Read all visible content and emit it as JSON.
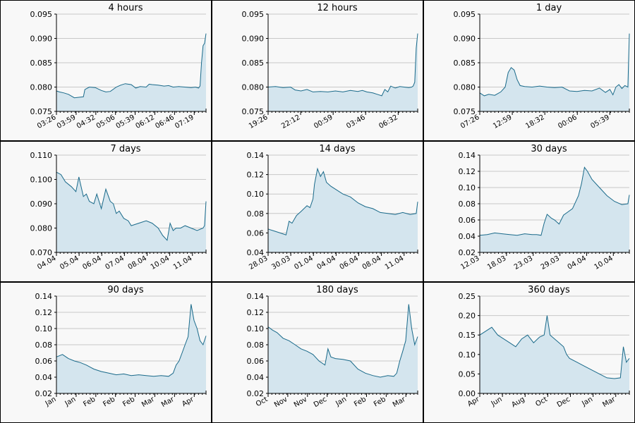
{
  "chart_data": [
    {
      "type": "area",
      "title": "4 hours",
      "ylim": [
        0.075,
        0.095
      ],
      "yticks": [
        "0.075",
        "0.080",
        "0.085",
        "0.090",
        "0.095"
      ],
      "xticks": [
        "03:26",
        "03:59",
        "04:32",
        "05:06",
        "05:39",
        "06:12",
        "06:46",
        "07:19"
      ],
      "x": [
        0,
        0.02,
        0.05,
        0.08,
        0.12,
        0.15,
        0.18,
        0.19,
        0.22,
        0.26,
        0.3,
        0.33,
        0.36,
        0.4,
        0.43,
        0.46,
        0.5,
        0.53,
        0.56,
        0.6,
        0.62,
        0.64,
        0.68,
        0.72,
        0.75,
        0.78,
        0.82,
        0.86,
        0.9,
        0.93,
        0.95,
        0.96,
        0.97,
        0.98,
        0.99,
        1.0
      ],
      "values": [
        0.0792,
        0.079,
        0.0788,
        0.0785,
        0.0778,
        0.0779,
        0.078,
        0.0795,
        0.08,
        0.0799,
        0.0793,
        0.079,
        0.0791,
        0.08,
        0.0804,
        0.0807,
        0.0805,
        0.0798,
        0.0801,
        0.08,
        0.0806,
        0.0805,
        0.0804,
        0.0802,
        0.0803,
        0.08,
        0.0801,
        0.08,
        0.0799,
        0.08,
        0.0798,
        0.0802,
        0.085,
        0.0885,
        0.089,
        0.091
      ]
    },
    {
      "type": "area",
      "title": "12 hours",
      "ylim": [
        0.075,
        0.095
      ],
      "yticks": [
        "0.075",
        "0.080",
        "0.085",
        "0.090",
        "0.095"
      ],
      "xticks": [
        "19:26",
        "22:12",
        "00:59",
        "03:46",
        "06:32"
      ],
      "x": [
        0,
        0.05,
        0.1,
        0.15,
        0.18,
        0.22,
        0.26,
        0.3,
        0.35,
        0.4,
        0.45,
        0.5,
        0.55,
        0.6,
        0.63,
        0.66,
        0.7,
        0.73,
        0.76,
        0.78,
        0.8,
        0.82,
        0.85,
        0.88,
        0.91,
        0.94,
        0.96,
        0.97,
        0.98,
        0.99,
        1.0
      ],
      "values": [
        0.08,
        0.0801,
        0.0799,
        0.08,
        0.0794,
        0.0792,
        0.0795,
        0.079,
        0.0791,
        0.079,
        0.0792,
        0.079,
        0.0793,
        0.0791,
        0.0793,
        0.079,
        0.0788,
        0.0785,
        0.0782,
        0.0795,
        0.079,
        0.0802,
        0.0798,
        0.0801,
        0.08,
        0.0799,
        0.08,
        0.0802,
        0.081,
        0.088,
        0.091
      ]
    },
    {
      "type": "area",
      "title": "1 day",
      "ylim": [
        0.075,
        0.095
      ],
      "yticks": [
        "0.075",
        "0.080",
        "0.085",
        "0.090",
        "0.095"
      ],
      "xticks": [
        "07:26",
        "12:59",
        "18:32",
        "00:06",
        "05:39"
      ],
      "x": [
        0,
        0.03,
        0.06,
        0.1,
        0.14,
        0.17,
        0.19,
        0.21,
        0.23,
        0.25,
        0.27,
        0.3,
        0.35,
        0.4,
        0.45,
        0.5,
        0.55,
        0.6,
        0.65,
        0.7,
        0.75,
        0.8,
        0.84,
        0.87,
        0.89,
        0.91,
        0.93,
        0.95,
        0.97,
        0.99,
        1.0
      ],
      "values": [
        0.0788,
        0.0782,
        0.0785,
        0.0783,
        0.079,
        0.08,
        0.083,
        0.084,
        0.0835,
        0.0815,
        0.0803,
        0.0801,
        0.08,
        0.0802,
        0.08,
        0.0799,
        0.08,
        0.0792,
        0.0791,
        0.0793,
        0.0792,
        0.0798,
        0.0789,
        0.0795,
        0.0784,
        0.08,
        0.0805,
        0.0797,
        0.0803,
        0.08,
        0.091
      ]
    },
    {
      "type": "area",
      "title": "7 days",
      "ylim": [
        0.07,
        0.11
      ],
      "yticks": [
        "0.070",
        "0.080",
        "0.090",
        "0.100",
        "0.110"
      ],
      "xticks": [
        "04.04",
        "05.04",
        "06.04",
        "07.04",
        "08.04",
        "10.04",
        "11.04"
      ],
      "x": [
        0,
        0.03,
        0.06,
        0.1,
        0.13,
        0.15,
        0.18,
        0.2,
        0.22,
        0.25,
        0.27,
        0.3,
        0.33,
        0.36,
        0.38,
        0.4,
        0.42,
        0.45,
        0.48,
        0.5,
        0.55,
        0.6,
        0.64,
        0.68,
        0.71,
        0.74,
        0.76,
        0.78,
        0.8,
        0.83,
        0.86,
        0.9,
        0.94,
        0.98,
        0.99,
        1.0
      ],
      "values": [
        0.103,
        0.102,
        0.099,
        0.097,
        0.095,
        0.101,
        0.093,
        0.094,
        0.091,
        0.09,
        0.094,
        0.088,
        0.096,
        0.091,
        0.09,
        0.086,
        0.087,
        0.084,
        0.083,
        0.081,
        0.082,
        0.083,
        0.082,
        0.08,
        0.077,
        0.075,
        0.082,
        0.079,
        0.08,
        0.08,
        0.081,
        0.08,
        0.079,
        0.08,
        0.081,
        0.091
      ]
    },
    {
      "type": "area",
      "title": "14 days",
      "ylim": [
        0.04,
        0.14
      ],
      "yticks": [
        "0.04",
        "0.06",
        "0.08",
        "0.10",
        "0.12",
        "0.14"
      ],
      "xticks": [
        "28.03",
        "30.03",
        "01.04",
        "04.04",
        "06.04",
        "08.04",
        "11.04"
      ],
      "x": [
        0,
        0.04,
        0.08,
        0.12,
        0.14,
        0.16,
        0.19,
        0.22,
        0.26,
        0.28,
        0.3,
        0.31,
        0.33,
        0.35,
        0.37,
        0.39,
        0.42,
        0.45,
        0.5,
        0.55,
        0.6,
        0.65,
        0.7,
        0.75,
        0.8,
        0.85,
        0.9,
        0.95,
        0.99,
        1.0
      ],
      "values": [
        0.064,
        0.062,
        0.06,
        0.058,
        0.072,
        0.07,
        0.078,
        0.082,
        0.088,
        0.086,
        0.095,
        0.11,
        0.126,
        0.118,
        0.123,
        0.112,
        0.108,
        0.105,
        0.1,
        0.097,
        0.091,
        0.087,
        0.085,
        0.081,
        0.08,
        0.079,
        0.081,
        0.079,
        0.08,
        0.092
      ]
    },
    {
      "type": "area",
      "title": "30 days",
      "ylim": [
        0.02,
        0.14
      ],
      "yticks": [
        "0.02",
        "0.04",
        "0.06",
        "0.08",
        "0.10",
        "0.12",
        "0.14"
      ],
      "xticks": [
        "12.03",
        "18.03",
        "23.03",
        "29.03",
        "04.04",
        "10.04"
      ],
      "x": [
        0,
        0.05,
        0.1,
        0.15,
        0.2,
        0.25,
        0.3,
        0.35,
        0.38,
        0.41,
        0.43,
        0.45,
        0.48,
        0.5,
        0.53,
        0.56,
        0.59,
        0.62,
        0.64,
        0.66,
        0.68,
        0.7,
        0.72,
        0.75,
        0.8,
        0.85,
        0.9,
        0.95,
        0.99,
        1.0
      ],
      "values": [
        0.041,
        0.042,
        0.044,
        0.043,
        0.042,
        0.041,
        0.043,
        0.042,
        0.042,
        0.041,
        0.056,
        0.067,
        0.062,
        0.06,
        0.055,
        0.066,
        0.07,
        0.074,
        0.082,
        0.09,
        0.105,
        0.125,
        0.12,
        0.11,
        0.1,
        0.09,
        0.083,
        0.079,
        0.08,
        0.091
      ]
    },
    {
      "type": "area",
      "title": "90 days",
      "ylim": [
        0.02,
        0.14
      ],
      "yticks": [
        "0.02",
        "0.04",
        "0.06",
        "0.08",
        "0.10",
        "0.12",
        "0.14"
      ],
      "xticks": [
        "Jan",
        "Jan",
        "Feb",
        "Feb",
        "Feb",
        "Mar",
        "Mar",
        "Apr"
      ],
      "x": [
        0,
        0.04,
        0.08,
        0.12,
        0.16,
        0.2,
        0.25,
        0.3,
        0.35,
        0.4,
        0.45,
        0.5,
        0.55,
        0.6,
        0.65,
        0.7,
        0.75,
        0.78,
        0.8,
        0.82,
        0.84,
        0.86,
        0.88,
        0.9,
        0.92,
        0.94,
        0.96,
        0.98,
        1.0
      ],
      "values": [
        0.065,
        0.068,
        0.063,
        0.06,
        0.058,
        0.055,
        0.05,
        0.047,
        0.045,
        0.043,
        0.044,
        0.042,
        0.043,
        0.042,
        0.041,
        0.042,
        0.041,
        0.045,
        0.055,
        0.06,
        0.07,
        0.08,
        0.09,
        0.13,
        0.11,
        0.1,
        0.085,
        0.08,
        0.091
      ]
    },
    {
      "type": "area",
      "title": "180 days",
      "ylim": [
        0.02,
        0.14
      ],
      "yticks": [
        "0.02",
        "0.04",
        "0.06",
        "0.08",
        "0.10",
        "0.12",
        "0.14"
      ],
      "xticks": [
        "Oct",
        "Nov",
        "Nov",
        "Dec",
        "Jan",
        "Feb",
        "Feb",
        "Mar"
      ],
      "x": [
        0,
        0.03,
        0.06,
        0.1,
        0.14,
        0.18,
        0.22,
        0.26,
        0.3,
        0.34,
        0.38,
        0.4,
        0.42,
        0.45,
        0.5,
        0.55,
        0.6,
        0.65,
        0.7,
        0.75,
        0.8,
        0.84,
        0.86,
        0.88,
        0.9,
        0.92,
        0.94,
        0.96,
        0.98,
        1.0
      ],
      "values": [
        0.102,
        0.098,
        0.095,
        0.088,
        0.085,
        0.08,
        0.075,
        0.072,
        0.068,
        0.06,
        0.055,
        0.075,
        0.065,
        0.063,
        0.062,
        0.06,
        0.05,
        0.045,
        0.042,
        0.04,
        0.042,
        0.041,
        0.045,
        0.06,
        0.072,
        0.085,
        0.13,
        0.1,
        0.08,
        0.09
      ]
    },
    {
      "type": "area",
      "title": "360 days",
      "ylim": [
        0.0,
        0.25
      ],
      "yticks": [
        "0.00",
        "0.05",
        "0.10",
        "0.15",
        "0.20",
        "0.25"
      ],
      "xticks": [
        "Apr",
        "Jun",
        "Aug",
        "Oct",
        "Dec",
        "Jan",
        "Mar"
      ],
      "x": [
        0,
        0.04,
        0.08,
        0.12,
        0.16,
        0.2,
        0.24,
        0.28,
        0.32,
        0.36,
        0.4,
        0.43,
        0.45,
        0.47,
        0.5,
        0.53,
        0.56,
        0.58,
        0.6,
        0.65,
        0.7,
        0.75,
        0.8,
        0.85,
        0.9,
        0.94,
        0.96,
        0.98,
        1.0
      ],
      "values": [
        0.15,
        0.16,
        0.17,
        0.15,
        0.14,
        0.13,
        0.12,
        0.14,
        0.15,
        0.13,
        0.145,
        0.15,
        0.2,
        0.15,
        0.14,
        0.13,
        0.12,
        0.1,
        0.09,
        0.08,
        0.07,
        0.06,
        0.05,
        0.04,
        0.038,
        0.04,
        0.12,
        0.08,
        0.09
      ]
    }
  ]
}
